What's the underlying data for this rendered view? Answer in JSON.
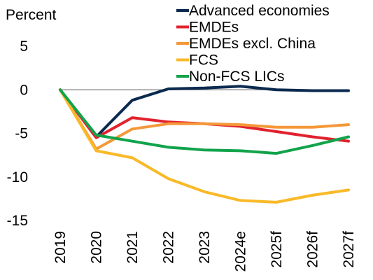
{
  "chart_data": {
    "type": "line",
    "unit_label": "Percent",
    "categories": [
      "2019",
      "2020",
      "2021",
      "2022",
      "2023",
      "2024e",
      "2025f",
      "2026f",
      "2027f"
    ],
    "ylim": [
      -15,
      5
    ],
    "yticks": [
      5,
      0,
      -5,
      -10,
      -15
    ],
    "ytick_labels": [
      "5",
      "0",
      "-5",
      "-10",
      "-15"
    ],
    "grid": false,
    "zero_line": true,
    "legend_position": "top-right",
    "series": [
      {
        "name": "Advanced economies",
        "color": "#0b2a4f",
        "values": [
          0,
          -5.4,
          -1.2,
          0.1,
          0.2,
          0.4,
          0.0,
          -0.1,
          -0.1
        ]
      },
      {
        "name": "EMDEs",
        "color": "#e1222e",
        "values": [
          0,
          -5.5,
          -3.2,
          -3.7,
          -3.9,
          -4.2,
          -4.8,
          -5.4,
          -5.9
        ]
      },
      {
        "name": "EMDEs excl. China",
        "color": "#f4983a",
        "values": [
          0,
          -6.8,
          -4.5,
          -3.9,
          -3.9,
          -4.0,
          -4.3,
          -4.3,
          -4.0
        ]
      },
      {
        "name": "FCS",
        "color": "#f9b928",
        "values": [
          0,
          -7.0,
          -7.8,
          -10.2,
          -11.7,
          -12.7,
          -12.9,
          -12.1,
          -11.5
        ]
      },
      {
        "name": "Non-FCS LICs",
        "color": "#12a34b",
        "values": [
          0,
          -5.2,
          -5.9,
          -6.6,
          -6.9,
          -7.0,
          -7.3,
          -6.4,
          -5.4
        ]
      }
    ]
  }
}
